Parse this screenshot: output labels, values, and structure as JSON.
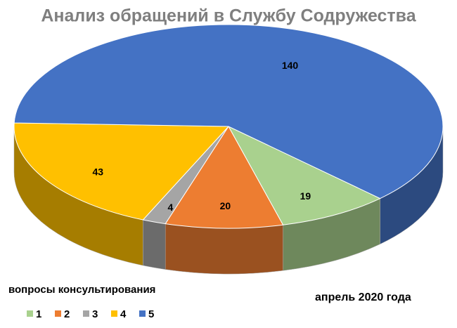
{
  "chart_data": {
    "type": "pie3d",
    "title": "Анализ обращений в Службу Содружества",
    "legend_title": "вопросы консультирования",
    "annotation": "апрель 2020 года",
    "categories": [
      "1",
      "2",
      "3",
      "4",
      "5"
    ],
    "values": [
      19,
      20,
      4,
      43,
      140
    ],
    "colors": [
      "#a9d18e",
      "#ed7d31",
      "#a5a5a5",
      "#ffc000",
      "#4472c4"
    ]
  }
}
